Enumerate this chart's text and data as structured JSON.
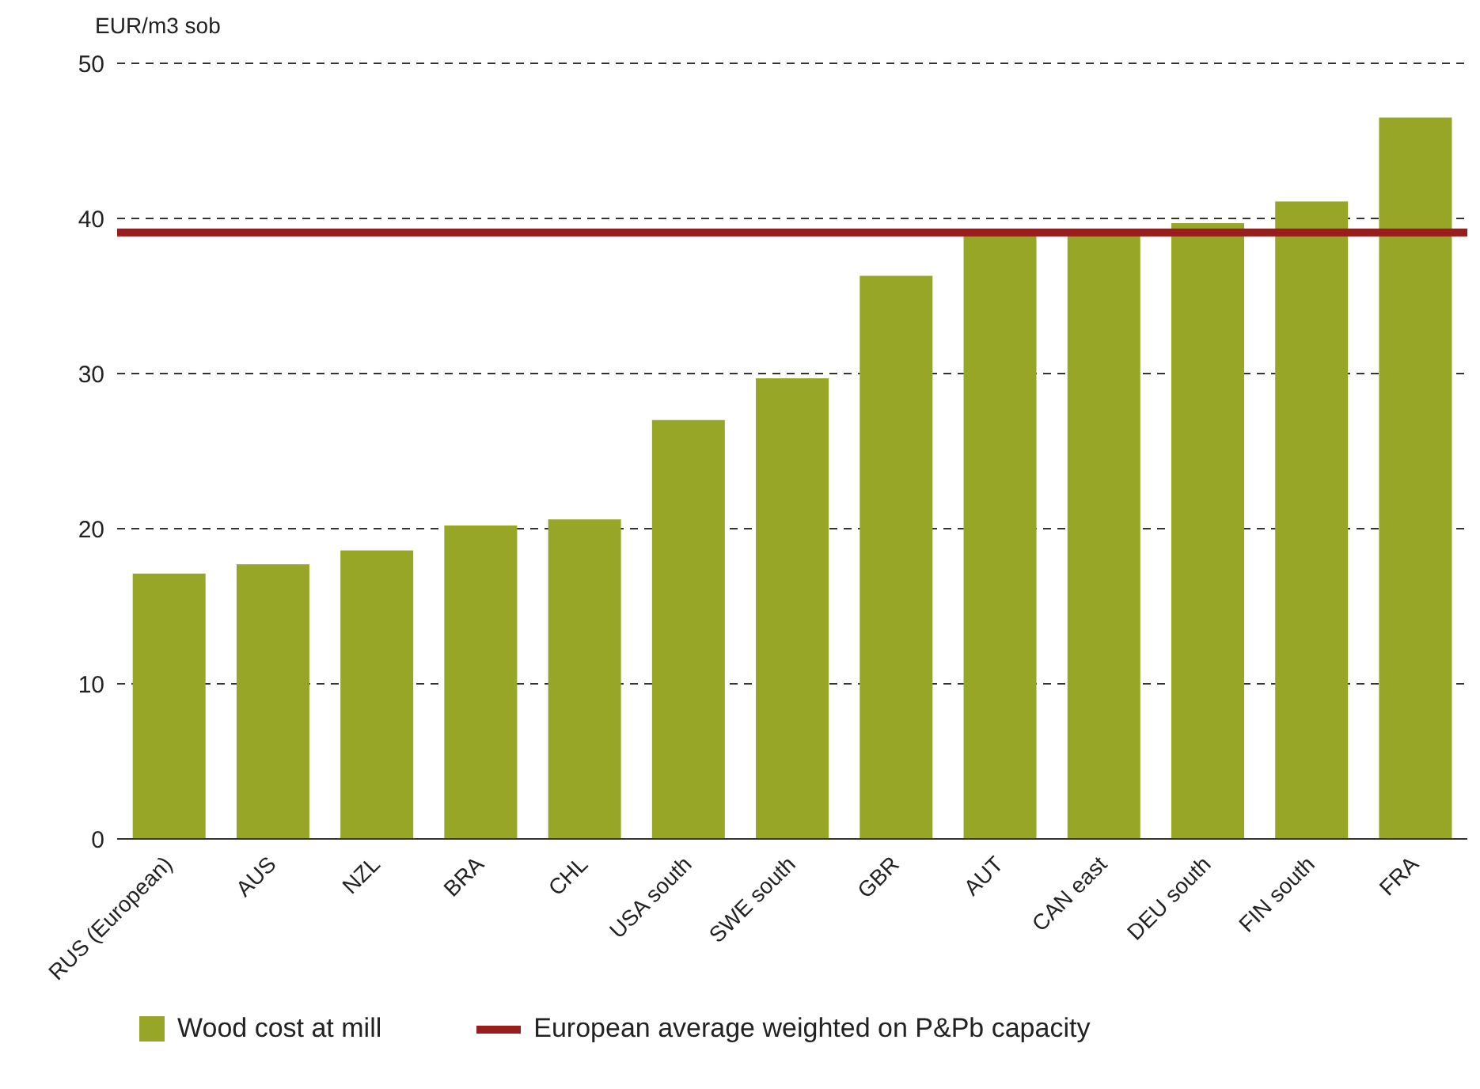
{
  "chart_data": {
    "type": "bar",
    "ylabel": "EUR/m3 sob",
    "categories": [
      "RUS (European)",
      "AUS",
      "NZL",
      "BRA",
      "CHL",
      "USA south",
      "SWE south",
      "GBR",
      "AUT",
      "CAN east",
      "DEU south",
      "FIN south",
      "FRA"
    ],
    "series": [
      {
        "name": "Wood cost at mill",
        "color": "#97a627",
        "values": [
          17.1,
          17.7,
          18.6,
          20.2,
          20.6,
          27.0,
          29.7,
          36.3,
          39.1,
          39.0,
          39.7,
          41.1,
          46.5
        ]
      }
    ],
    "ylim": [
      0,
      50
    ],
    "yticks": [
      0,
      10,
      20,
      30,
      40,
      50
    ],
    "grid": "y",
    "legend": "bottom",
    "ref_lines": [
      {
        "axis": "y",
        "value": 39.1,
        "label": "European average weighted on P&Pb capacity",
        "color": "#9b1c1c"
      }
    ]
  }
}
